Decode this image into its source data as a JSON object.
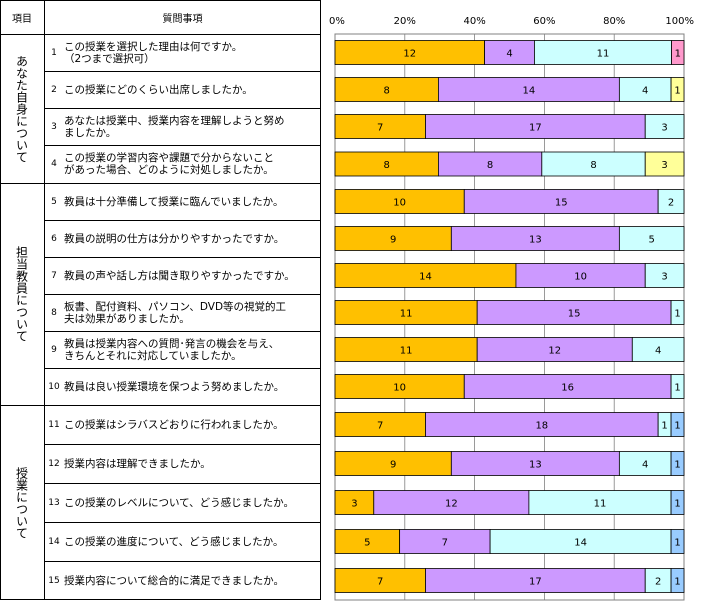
{
  "header": {
    "category": "項目",
    "question": "質問事項"
  },
  "groups": [
    {
      "label": "あなた自身について"
    },
    {
      "label": "担当教員について"
    },
    {
      "label": "授業について"
    }
  ],
  "questions": [
    {
      "num": "1",
      "text": "この授業を選択した理由は何ですか。\n（2つまで選択可）"
    },
    {
      "num": "2",
      "text": " この授業にどのくらい出席しましたか。"
    },
    {
      "num": "3",
      "text": "あなたは授業中、授業内容を理解しようと努め\nましたか。"
    },
    {
      "num": "4",
      "text": "この授業の学習内容や課題で分からないこと\nがあった場合、どのように対処しましたか。"
    },
    {
      "num": "5",
      "text": "教員は十分準備して授業に臨んでいましたか。"
    },
    {
      "num": "6",
      "text": "教員の説明の仕方は分かりやすかったですか。"
    },
    {
      "num": "7",
      "text": "教員の声や話し方は聞き取りやすかったですか。"
    },
    {
      "num": "8",
      "text": "板書、配付資料、パソコン、DVD等の視覚的工\n夫は効果がありましたか。"
    },
    {
      "num": "9",
      "text": "教員は授業内容への質問･発言の機会を与え、\nきちんとそれに対応していましたか。"
    },
    {
      "num": "10",
      "text": "教員は良い授業環境を保つよう努めましたか。"
    },
    {
      "num": "11",
      "text": "この授業はシラバスどおりに行われましたか。"
    },
    {
      "num": "12",
      "text": "授業内容は理解できましたか。"
    },
    {
      "num": "13",
      "text": "この授業のレベルについて、どう感じましたか。"
    },
    {
      "num": "14",
      "text": "この授業の進度について、どう感じましたか。"
    },
    {
      "num": "15",
      "text": "授業内容について総合的に満足できましたか。"
    }
  ],
  "colors": [
    "#ffc000",
    "#cc99ff",
    "#ccffff",
    "#ff99cc",
    "#ffff99",
    "#99ccff"
  ],
  "chart_data": {
    "type": "bar",
    "orientation": "horizontal",
    "stacked": "percent",
    "xlim": [
      0,
      100
    ],
    "x_ticks": [
      "0%",
      "20%",
      "40%",
      "60%",
      "80%",
      "100%"
    ],
    "categories": [
      "1",
      "2",
      "3",
      "4",
      "5",
      "6",
      "7",
      "8",
      "9",
      "10",
      "11",
      "12",
      "13",
      "14",
      "15"
    ],
    "rows": [
      [
        {
          "v": 12,
          "c": 0
        },
        {
          "v": 4,
          "c": 1
        },
        {
          "v": 11,
          "c": 2
        },
        {
          "v": 1,
          "c": 3
        }
      ],
      [
        {
          "v": 8,
          "c": 0
        },
        {
          "v": 14,
          "c": 1
        },
        {
          "v": 4,
          "c": 2
        },
        {
          "v": 1,
          "c": 4
        }
      ],
      [
        {
          "v": 7,
          "c": 0
        },
        {
          "v": 17,
          "c": 1
        },
        {
          "v": 3,
          "c": 2
        }
      ],
      [
        {
          "v": 8,
          "c": 0
        },
        {
          "v": 8,
          "c": 1
        },
        {
          "v": 8,
          "c": 2
        },
        {
          "v": 3,
          "c": 4
        }
      ],
      [
        {
          "v": 10,
          "c": 0
        },
        {
          "v": 15,
          "c": 1
        },
        {
          "v": 2,
          "c": 2
        }
      ],
      [
        {
          "v": 9,
          "c": 0
        },
        {
          "v": 13,
          "c": 1
        },
        {
          "v": 5,
          "c": 2
        }
      ],
      [
        {
          "v": 14,
          "c": 0
        },
        {
          "v": 10,
          "c": 1
        },
        {
          "v": 3,
          "c": 2
        }
      ],
      [
        {
          "v": 11,
          "c": 0
        },
        {
          "v": 15,
          "c": 1
        },
        {
          "v": 1,
          "c": 2
        }
      ],
      [
        {
          "v": 11,
          "c": 0
        },
        {
          "v": 12,
          "c": 1
        },
        {
          "v": 4,
          "c": 2
        }
      ],
      [
        {
          "v": 10,
          "c": 0
        },
        {
          "v": 16,
          "c": 1
        },
        {
          "v": 1,
          "c": 2
        }
      ],
      [
        {
          "v": 7,
          "c": 0
        },
        {
          "v": 18,
          "c": 1
        },
        {
          "v": 1,
          "c": 2
        },
        {
          "v": 1,
          "c": 5
        }
      ],
      [
        {
          "v": 9,
          "c": 0
        },
        {
          "v": 13,
          "c": 1
        },
        {
          "v": 4,
          "c": 2
        },
        {
          "v": 1,
          "c": 5
        }
      ],
      [
        {
          "v": 3,
          "c": 0
        },
        {
          "v": 12,
          "c": 1
        },
        {
          "v": 11,
          "c": 2
        },
        {
          "v": 1,
          "c": 5
        }
      ],
      [
        {
          "v": 5,
          "c": 0
        },
        {
          "v": 7,
          "c": 1
        },
        {
          "v": 14,
          "c": 2
        },
        {
          "v": 1,
          "c": 5
        }
      ],
      [
        {
          "v": 7,
          "c": 0
        },
        {
          "v": 17,
          "c": 1
        },
        {
          "v": 2,
          "c": 2
        },
        {
          "v": 1,
          "c": 5
        }
      ]
    ]
  }
}
